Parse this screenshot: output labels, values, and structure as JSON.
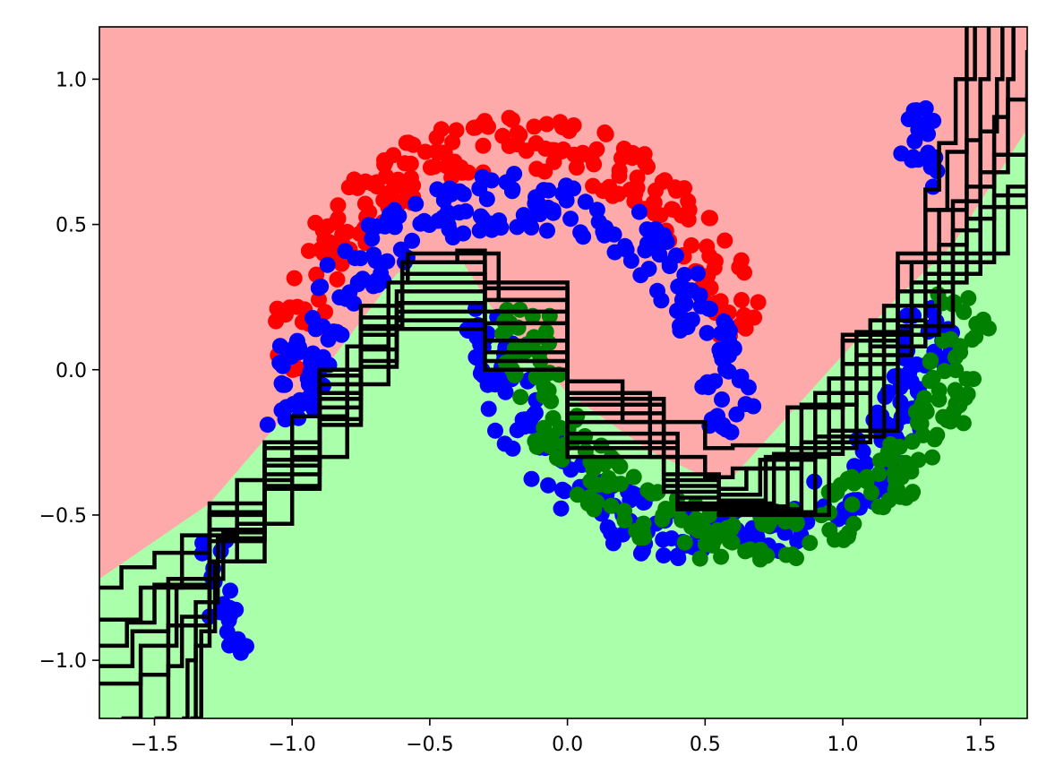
{
  "chart_data": {
    "type": "scatter",
    "title": "",
    "xlabel": "",
    "ylabel": "",
    "xlim": [
      -1.7,
      1.67
    ],
    "ylim": [
      -1.2,
      1.18
    ],
    "grid": false,
    "legend": "none",
    "x_ticks": [
      {
        "value": -1.5,
        "label": "−1.5"
      },
      {
        "value": -1.0,
        "label": "−1.0"
      },
      {
        "value": -0.5,
        "label": "−0.5"
      },
      {
        "value": 0.0,
        "label": "0.0"
      },
      {
        "value": 0.5,
        "label": "0.5"
      },
      {
        "value": 1.0,
        "label": "1.0"
      },
      {
        "value": 1.5,
        "label": "1.5"
      }
    ],
    "y_ticks": [
      {
        "value": 1.0,
        "label": "1.0"
      },
      {
        "value": 0.5,
        "label": "0.5"
      },
      {
        "value": 0.0,
        "label": "0.0"
      },
      {
        "value": -0.5,
        "label": "−0.5"
      },
      {
        "value": -1.0,
        "label": "−1.0"
      }
    ],
    "regions": {
      "upper_color": "#ffaaaa",
      "lower_color": "#aaffaa",
      "boundary": [
        [
          -1.7,
          -0.72
        ],
        [
          -1.3,
          -0.46
        ],
        [
          -0.9,
          -0.02
        ],
        [
          -0.62,
          0.33
        ],
        [
          -0.55,
          0.37
        ],
        [
          -0.38,
          0.37
        ],
        [
          -0.28,
          0.22
        ],
        [
          0.0,
          -0.08
        ],
        [
          0.3,
          -0.28
        ],
        [
          0.5,
          -0.37
        ],
        [
          0.6,
          -0.37
        ],
        [
          0.8,
          -0.16
        ],
        [
          1.0,
          0.05
        ],
        [
          1.2,
          0.25
        ],
        [
          1.4,
          0.43
        ],
        [
          1.67,
          0.83
        ]
      ]
    },
    "contour_lines": [
      [
        [
          -1.7,
          -0.75
        ],
        [
          -1.62,
          -0.68
        ],
        [
          -1.5,
          -0.63
        ],
        [
          -1.3,
          -0.5
        ],
        [
          -1.1,
          -0.33
        ],
        [
          -0.9,
          -0.1
        ],
        [
          -0.75,
          0.15
        ],
        [
          -0.6,
          0.37
        ],
        [
          -0.4,
          0.41
        ],
        [
          -0.3,
          0.3
        ],
        [
          0.0,
          -0.04
        ],
        [
          0.2,
          -0.18
        ],
        [
          0.5,
          -0.27
        ],
        [
          0.6,
          -0.26
        ],
        [
          0.8,
          -0.13
        ],
        [
          1.0,
          0.12
        ],
        [
          1.2,
          0.4
        ],
        [
          1.3,
          0.62
        ],
        [
          1.35,
          0.78
        ],
        [
          1.41,
          1.0
        ],
        [
          1.45,
          1.18
        ]
      ],
      [
        [
          -1.7,
          -0.86
        ],
        [
          -1.55,
          -0.75
        ],
        [
          -1.4,
          -0.57
        ],
        [
          -1.2,
          -0.38
        ],
        [
          -1.0,
          -0.16
        ],
        [
          -0.8,
          0.08
        ],
        [
          -0.65,
          0.3
        ],
        [
          -0.58,
          0.4
        ],
        [
          -0.38,
          0.4
        ],
        [
          -0.25,
          0.24
        ],
        [
          0.0,
          -0.08
        ],
        [
          0.3,
          -0.3
        ],
        [
          0.5,
          -0.37
        ],
        [
          0.6,
          -0.34
        ],
        [
          0.8,
          -0.13
        ],
        [
          1.0,
          0.1
        ],
        [
          1.2,
          0.37
        ],
        [
          1.3,
          0.55
        ],
        [
          1.38,
          0.75
        ],
        [
          1.45,
          1.0
        ],
        [
          1.48,
          1.18
        ]
      ],
      [
        [
          -1.7,
          -0.95
        ],
        [
          -1.6,
          -0.87
        ],
        [
          -1.5,
          -0.74
        ],
        [
          -1.3,
          -0.46
        ],
        [
          -1.1,
          -0.25
        ],
        [
          -0.9,
          0.0
        ],
        [
          -0.75,
          0.22
        ],
        [
          -0.6,
          0.37
        ],
        [
          -0.42,
          0.37
        ],
        [
          -0.3,
          0.28
        ],
        [
          0.0,
          -0.1
        ],
        [
          0.35,
          -0.36
        ],
        [
          0.55,
          -0.41
        ],
        [
          0.65,
          -0.34
        ],
        [
          0.85,
          -0.12
        ],
        [
          1.05,
          0.13
        ],
        [
          1.25,
          0.37
        ],
        [
          1.35,
          0.55
        ],
        [
          1.45,
          0.79
        ],
        [
          1.5,
          1.0
        ],
        [
          1.53,
          1.18
        ]
      ],
      [
        [
          -1.7,
          -1.02
        ],
        [
          -1.58,
          -0.9
        ],
        [
          -1.45,
          -0.72
        ],
        [
          -1.3,
          -0.49
        ],
        [
          -1.1,
          -0.27
        ],
        [
          -0.9,
          -0.02
        ],
        [
          -0.75,
          0.18
        ],
        [
          -0.6,
          0.33
        ],
        [
          -0.45,
          0.33
        ],
        [
          -0.3,
          0.24
        ],
        [
          0.0,
          -0.12
        ],
        [
          0.35,
          -0.38
        ],
        [
          0.55,
          -0.43
        ],
        [
          0.7,
          -0.31
        ],
        [
          0.9,
          -0.08
        ],
        [
          1.1,
          0.17
        ],
        [
          1.3,
          0.4
        ],
        [
          1.4,
          0.58
        ],
        [
          1.5,
          0.82
        ],
        [
          1.56,
          1.0
        ],
        [
          1.58,
          1.18
        ]
      ],
      [
        [
          -1.7,
          -1.08
        ],
        [
          -1.55,
          -0.95
        ],
        [
          -1.42,
          -0.75
        ],
        [
          -1.3,
          -0.55
        ],
        [
          -1.1,
          -0.31
        ],
        [
          -0.9,
          -0.05
        ],
        [
          -0.75,
          0.14
        ],
        [
          -0.6,
          0.3
        ],
        [
          -0.45,
          0.3
        ],
        [
          -0.3,
          0.2
        ],
        [
          0.0,
          -0.15
        ],
        [
          0.35,
          -0.4
        ],
        [
          0.55,
          -0.45
        ],
        [
          0.72,
          -0.3
        ],
        [
          0.95,
          -0.03
        ],
        [
          1.15,
          0.22
        ],
        [
          1.35,
          0.43
        ],
        [
          1.45,
          0.63
        ],
        [
          1.55,
          0.87
        ],
        [
          1.6,
          1.0
        ],
        [
          1.62,
          1.18
        ]
      ],
      [
        [
          -1.62,
          -1.2
        ],
        [
          -1.55,
          -1.05
        ],
        [
          -1.45,
          -0.88
        ],
        [
          -1.3,
          -0.59
        ],
        [
          -1.1,
          -0.33
        ],
        [
          -0.9,
          -0.08
        ],
        [
          -0.75,
          0.12
        ],
        [
          -0.62,
          0.27
        ],
        [
          -0.45,
          0.27
        ],
        [
          -0.3,
          0.16
        ],
        [
          0.0,
          -0.18
        ],
        [
          0.35,
          -0.42
        ],
        [
          0.55,
          -0.46
        ],
        [
          0.75,
          -0.29
        ],
        [
          1.0,
          0.02
        ],
        [
          1.2,
          0.27
        ],
        [
          1.4,
          0.48
        ],
        [
          1.5,
          0.68
        ],
        [
          1.6,
          0.93
        ],
        [
          1.67,
          1.1
        ]
      ],
      [
        [
          -1.5,
          -1.2
        ],
        [
          -1.45,
          -1.02
        ],
        [
          -1.4,
          -0.85
        ],
        [
          -1.3,
          -0.66
        ],
        [
          -1.1,
          -0.36
        ],
        [
          -0.9,
          -0.13
        ],
        [
          -0.75,
          0.07
        ],
        [
          -0.62,
          0.23
        ],
        [
          -0.45,
          0.23
        ],
        [
          -0.3,
          0.1
        ],
        [
          0.0,
          -0.22
        ],
        [
          0.4,
          -0.44
        ],
        [
          0.55,
          -0.47
        ],
        [
          0.8,
          -0.27
        ],
        [
          1.05,
          0.05
        ],
        [
          1.25,
          0.3
        ],
        [
          1.45,
          0.52
        ],
        [
          1.55,
          0.74
        ],
        [
          1.67,
          0.95
        ]
      ],
      [
        [
          -1.4,
          -1.2
        ],
        [
          -1.38,
          -1.0
        ],
        [
          -1.35,
          -0.8
        ],
        [
          -1.27,
          -0.58
        ],
        [
          -1.1,
          -0.4
        ],
        [
          -0.9,
          -0.17
        ],
        [
          -0.75,
          0.03
        ],
        [
          -0.62,
          0.2
        ],
        [
          -0.45,
          0.2
        ],
        [
          -0.3,
          0.06
        ],
        [
          0.0,
          -0.25
        ],
        [
          0.4,
          -0.46
        ],
        [
          0.55,
          -0.48
        ],
        [
          0.85,
          -0.25
        ],
        [
          1.1,
          0.08
        ],
        [
          1.3,
          0.33
        ],
        [
          1.5,
          0.56
        ],
        [
          1.67,
          0.8
        ]
      ],
      [
        [
          -1.37,
          -1.2
        ],
        [
          -1.35,
          -0.95
        ],
        [
          -1.3,
          -0.72
        ],
        [
          -1.25,
          -0.56
        ],
        [
          -1.1,
          -0.41
        ],
        [
          -0.9,
          -0.19
        ],
        [
          -0.75,
          0.01
        ],
        [
          -0.62,
          0.17
        ],
        [
          -0.45,
          0.17
        ],
        [
          -0.3,
          0.03
        ],
        [
          0.0,
          -0.27
        ],
        [
          0.4,
          -0.47
        ],
        [
          0.55,
          -0.49
        ],
        [
          0.9,
          -0.23
        ],
        [
          1.15,
          0.12
        ],
        [
          1.35,
          0.37
        ],
        [
          1.55,
          0.6
        ],
        [
          1.67,
          0.74
        ]
      ],
      [
        [
          -1.35,
          -1.2
        ],
        [
          -1.33,
          -0.9
        ],
        [
          -1.28,
          -0.66
        ],
        [
          -1.2,
          -0.53
        ],
        [
          -1.0,
          -0.3
        ],
        [
          -0.8,
          -0.05
        ],
        [
          -0.65,
          0.14
        ],
        [
          -0.5,
          0.14
        ],
        [
          -0.3,
          0.0
        ],
        [
          0.0,
          -0.3
        ],
        [
          0.4,
          -0.48
        ],
        [
          0.55,
          -0.5
        ],
        [
          0.95,
          -0.21
        ],
        [
          1.2,
          0.15
        ],
        [
          1.4,
          0.4
        ],
        [
          1.6,
          0.63
        ],
        [
          1.67,
          0.72
        ]
      ]
    ],
    "series": [
      {
        "color": "#ff0000",
        "shape": "upper",
        "center": [
          -0.18,
          -0.04
        ],
        "radius": 0.82,
        "angle_range": [
          10,
          178
        ],
        "jitter": 0.06,
        "count": 220
      },
      {
        "color": "#0000ff",
        "shape": "upper",
        "center": [
          -0.2,
          -0.22
        ],
        "radius": 0.8,
        "angle_range": [
          0,
          180
        ],
        "jitter": 0.06,
        "count": 220
      },
      {
        "color": "#0000ff",
        "shape": "lower",
        "center": [
          0.52,
          0.22
        ],
        "radius": 0.8,
        "angle_range": [
          0,
          180
        ],
        "jitter": 0.06,
        "count": 220
      },
      {
        "color": "#0000ff",
        "shape": "arm",
        "points": [
          [
            -1.28,
            -0.65
          ],
          [
            -1.25,
            -0.8
          ],
          [
            -1.22,
            -0.9
          ],
          [
            1.25,
            0.8
          ],
          [
            1.3,
            0.7
          ],
          [
            1.27,
            0.88
          ]
        ],
        "count": 40
      },
      {
        "color": "#008000",
        "shape": "lower",
        "center": [
          0.64,
          0.22
        ],
        "radius": 0.8,
        "angle_range": [
          -4,
          180
        ],
        "jitter": 0.06,
        "count": 220
      }
    ]
  }
}
